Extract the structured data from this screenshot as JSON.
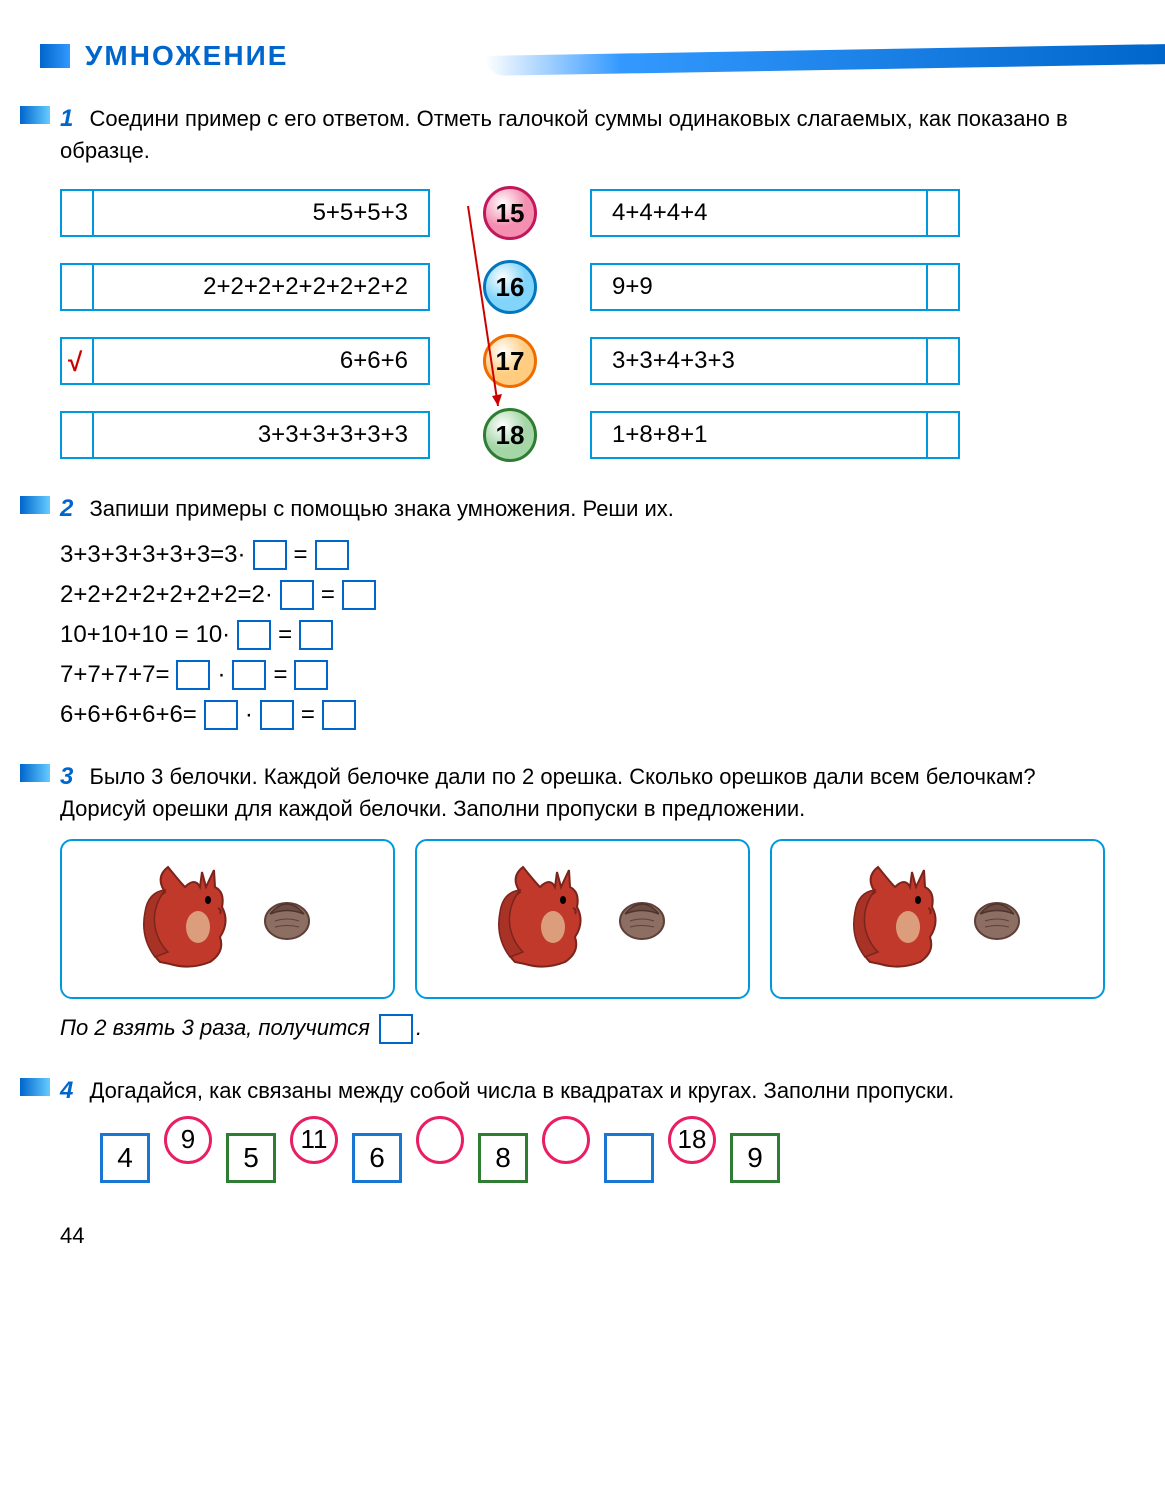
{
  "header": {
    "title": "УМНОЖЕНИЕ"
  },
  "pageNumber": "44",
  "colors": {
    "primary": "#0066cc",
    "boxBorder": "#0099dd",
    "redCheck": "#cc0000",
    "magenta": "#e91e63",
    "darkGreen": "#2e7d32",
    "blueSquare": "#1976d2"
  },
  "task1": {
    "num": "1",
    "text": "Соедини пример с его ответом. Отметь галочкой суммы одина­ковых слагаемых, как показано в образце.",
    "left": [
      {
        "expr": "5+5+5+3",
        "checked": false
      },
      {
        "expr": "2+2+2+2+2+2+2+2",
        "checked": false
      },
      {
        "expr": "6+6+6",
        "checked": true
      },
      {
        "expr": "3+3+3+3+3+3",
        "checked": false
      }
    ],
    "answers": [
      {
        "val": "15",
        "border": "#c2185b",
        "fill": "#f48fb1"
      },
      {
        "val": "16",
        "border": "#0277bd",
        "fill": "#81d4fa"
      },
      {
        "val": "17",
        "border": "#ef6c00",
        "fill": "#ffcc80"
      },
      {
        "val": "18",
        "border": "#2e7d32",
        "fill": "#a5d6a7"
      }
    ],
    "right": [
      {
        "expr": "4+4+4+4"
      },
      {
        "expr": "9+9"
      },
      {
        "expr": "3+3+4+3+3"
      },
      {
        "expr": "1+8+8+1"
      }
    ],
    "arrowColor": "#cc0000"
  },
  "task2": {
    "num": "2",
    "text": "Запиши примеры с помощью знака умножения. Реши их.",
    "lines": [
      {
        "pre": "3+3+3+3+3+3=3·",
        "boxes": 1,
        "post": "=",
        "boxes2": 1
      },
      {
        "pre": "2+2+2+2+2+2+2=2·",
        "boxes": 1,
        "post": "=",
        "boxes2": 1
      },
      {
        "pre": "10+10+10 = 10·",
        "boxes": 1,
        "post": "=",
        "boxes2": 1
      },
      {
        "pre": "7+7+7+7=",
        "boxes": 1,
        "mid": "·",
        "boxes_m": 1,
        "post": "=",
        "boxes2": 1
      },
      {
        "pre": "6+6+6+6+6=",
        "boxes": 1,
        "mid": "·",
        "boxes_m": 1,
        "post": "=",
        "boxes2": 1
      }
    ]
  },
  "task3": {
    "num": "3",
    "text": "Было 3 белочки. Каждой белочке дали по 2 орешка. Сколько орешков дали всем белочкам? Дорисуй орешки для каждой белочки. Заполни пропуски в предложении.",
    "footer_pre": "По 2 взять 3 раза, получится ",
    "footer_post": "."
  },
  "task4": {
    "num": "4",
    "text": "Догадайся, как связаны между собой числа в квадратах и кру­гах. Заполни пропуски.",
    "seq": [
      {
        "type": "square",
        "val": "4",
        "color": "#1976d2"
      },
      {
        "type": "circle",
        "val": "9"
      },
      {
        "type": "square",
        "val": "5",
        "color": "#2e7d32"
      },
      {
        "type": "circle",
        "val": "11"
      },
      {
        "type": "square",
        "val": "6",
        "color": "#1976d2"
      },
      {
        "type": "circle",
        "val": ""
      },
      {
        "type": "square",
        "val": "8",
        "color": "#2e7d32"
      },
      {
        "type": "circle",
        "val": ""
      },
      {
        "type": "square",
        "val": "",
        "color": "#1976d2"
      },
      {
        "type": "circle",
        "val": "18"
      },
      {
        "type": "square",
        "val": "9",
        "color": "#2e7d32"
      }
    ]
  }
}
